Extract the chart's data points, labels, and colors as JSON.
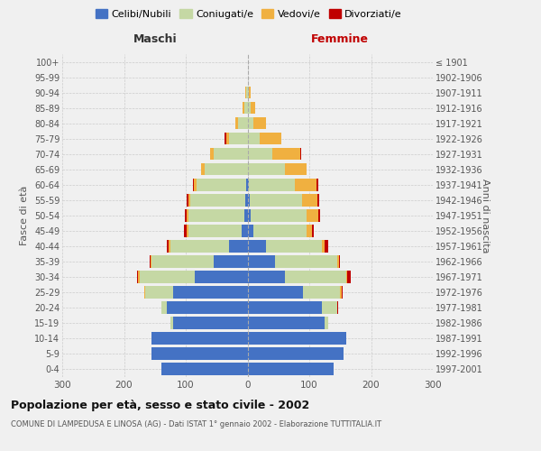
{
  "age_groups": [
    "0-4",
    "5-9",
    "10-14",
    "15-19",
    "20-24",
    "25-29",
    "30-34",
    "35-39",
    "40-44",
    "45-49",
    "50-54",
    "55-59",
    "60-64",
    "65-69",
    "70-74",
    "75-79",
    "80-84",
    "85-89",
    "90-94",
    "95-99",
    "100+"
  ],
  "birth_years": [
    "1997-2001",
    "1992-1996",
    "1987-1991",
    "1982-1986",
    "1977-1981",
    "1972-1976",
    "1967-1971",
    "1962-1966",
    "1957-1961",
    "1952-1956",
    "1947-1951",
    "1942-1946",
    "1937-1941",
    "1932-1936",
    "1927-1931",
    "1922-1926",
    "1917-1921",
    "1912-1916",
    "1907-1911",
    "1902-1906",
    "≤ 1901"
  ],
  "male_celibi": [
    140,
    155,
    155,
    120,
    130,
    120,
    85,
    55,
    30,
    10,
    5,
    3,
    2,
    0,
    0,
    0,
    0,
    0,
    0,
    0,
    0
  ],
  "male_coniugati": [
    0,
    0,
    0,
    5,
    10,
    45,
    90,
    100,
    95,
    85,
    90,
    90,
    80,
    70,
    55,
    30,
    15,
    5,
    2,
    0,
    0
  ],
  "male_vedovi": [
    0,
    0,
    0,
    0,
    0,
    2,
    2,
    2,
    3,
    3,
    3,
    3,
    5,
    5,
    5,
    5,
    5,
    3,
    1,
    0,
    0
  ],
  "male_divorziati": [
    0,
    0,
    0,
    0,
    0,
    0,
    2,
    2,
    2,
    5,
    3,
    3,
    2,
    0,
    0,
    2,
    0,
    0,
    0,
    0,
    0
  ],
  "female_celibi": [
    140,
    155,
    160,
    125,
    120,
    90,
    60,
    45,
    30,
    10,
    5,
    3,
    2,
    0,
    0,
    0,
    0,
    0,
    0,
    0,
    0
  ],
  "female_coniugati": [
    0,
    0,
    0,
    5,
    25,
    60,
    100,
    100,
    90,
    85,
    90,
    85,
    75,
    60,
    40,
    20,
    10,
    5,
    2,
    0,
    0
  ],
  "female_vedovi": [
    0,
    0,
    0,
    0,
    0,
    2,
    2,
    3,
    5,
    10,
    20,
    25,
    35,
    35,
    45,
    35,
    20,
    8,
    3,
    1,
    0
  ],
  "female_divorziati": [
    0,
    0,
    0,
    0,
    2,
    2,
    5,
    2,
    5,
    3,
    3,
    3,
    2,
    0,
    2,
    0,
    0,
    0,
    0,
    0,
    0
  ],
  "color_celibi": "#4472c4",
  "color_coniugati": "#c5d8a4",
  "color_vedovi": "#f0b040",
  "color_divorziati": "#c00000",
  "title_main": "Popolazione per età, sesso e stato civile - 2002",
  "title_sub": "COMUNE DI LAMPEDUSA E LINOSA (AG) - Dati ISTAT 1° gennaio 2002 - Elaborazione TUTTITALIA.IT",
  "xlabel_left": "Maschi",
  "xlabel_right": "Femmine",
  "ylabel_left": "Fasce di età",
  "ylabel_right": "Anni di nascita",
  "xlim": 300,
  "bg_color": "#f0f0f0",
  "grid_color": "#cccccc",
  "bar_height": 0.8
}
